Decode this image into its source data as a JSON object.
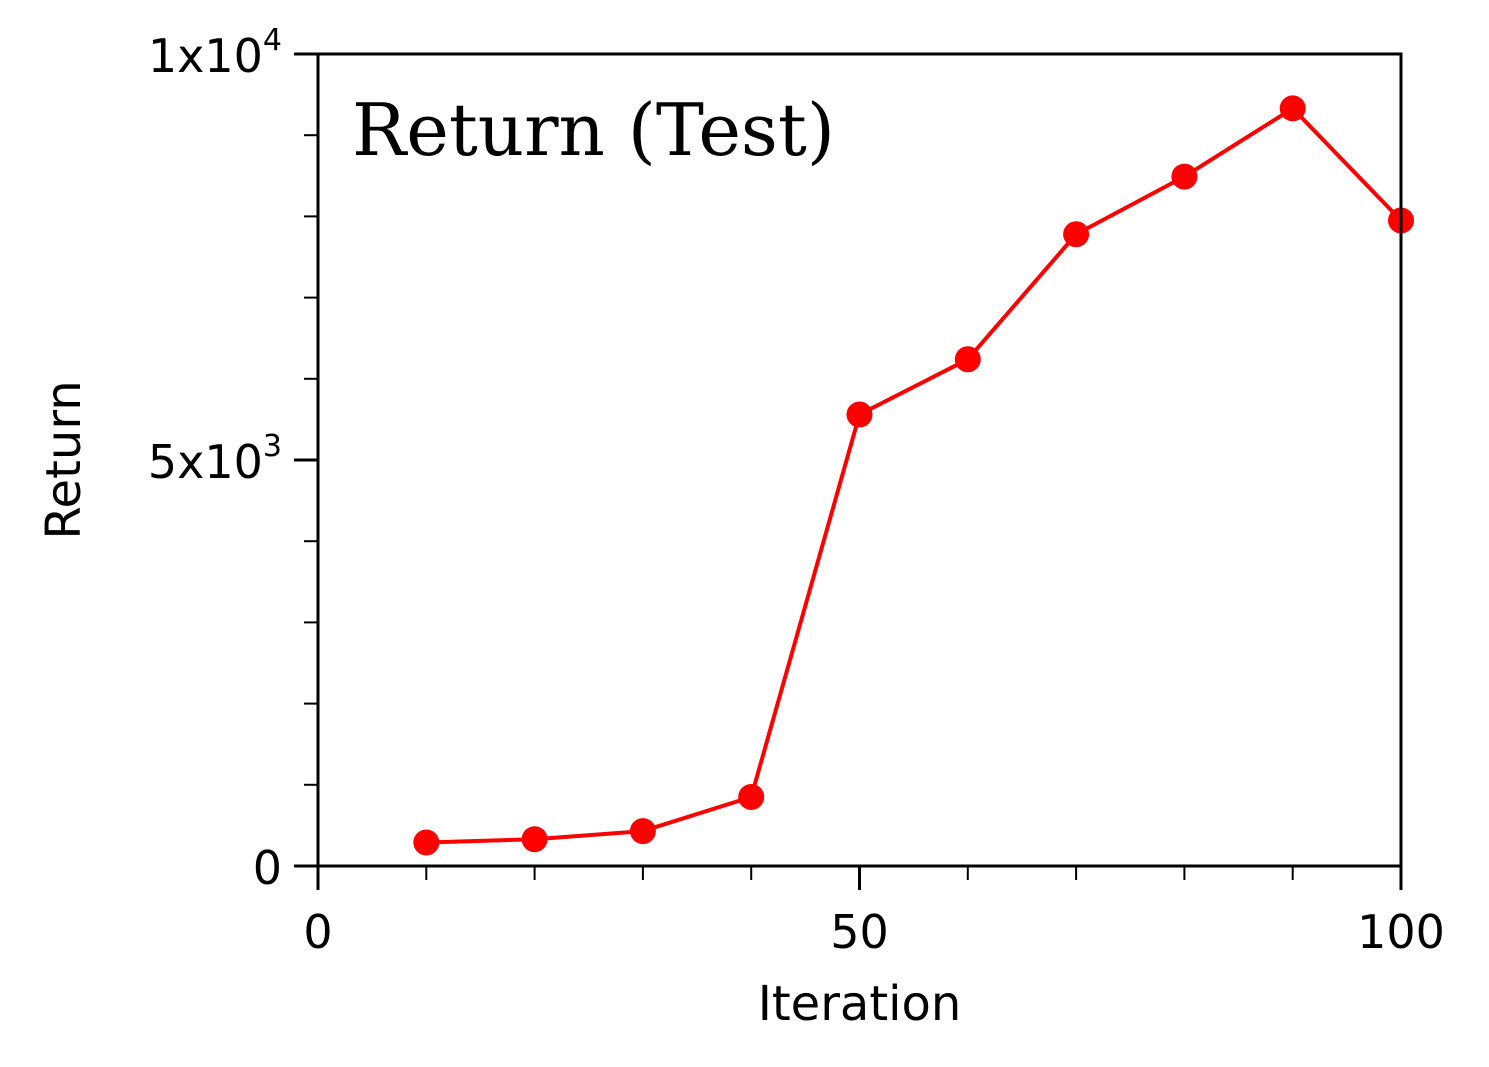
{
  "chart_data": {
    "type": "line",
    "title": "Return (Test)",
    "xlabel": "Iteration",
    "ylabel": "Return",
    "xlim": [
      0,
      100
    ],
    "ylim": [
      0,
      10000
    ],
    "grid": false,
    "x_ticks": [
      {
        "value": 0,
        "label": "0"
      },
      {
        "value": 50,
        "label": "50"
      },
      {
        "value": 100,
        "label": "100"
      }
    ],
    "y_ticks": [
      {
        "value": 0,
        "mantissa": "0",
        "exponent": ""
      },
      {
        "value": 5000,
        "mantissa": "5x10",
        "exponent": "3"
      },
      {
        "value": 10000,
        "mantissa": "1x10",
        "exponent": "4"
      }
    ],
    "x_minor_ticks": [
      10,
      20,
      30,
      40,
      60,
      70,
      80,
      90
    ],
    "y_minor_ticks": [
      1000,
      2000,
      3000,
      4000,
      6000,
      7000,
      8000,
      9000
    ],
    "series": [
      {
        "color": "#ff0000",
        "x": [
          10,
          20,
          30,
          40,
          50,
          60,
          70,
          80,
          90,
          100
        ],
        "y": [
          290,
          330,
          430,
          850,
          5560,
          6240,
          7780,
          8490,
          9330,
          7950
        ]
      }
    ]
  }
}
